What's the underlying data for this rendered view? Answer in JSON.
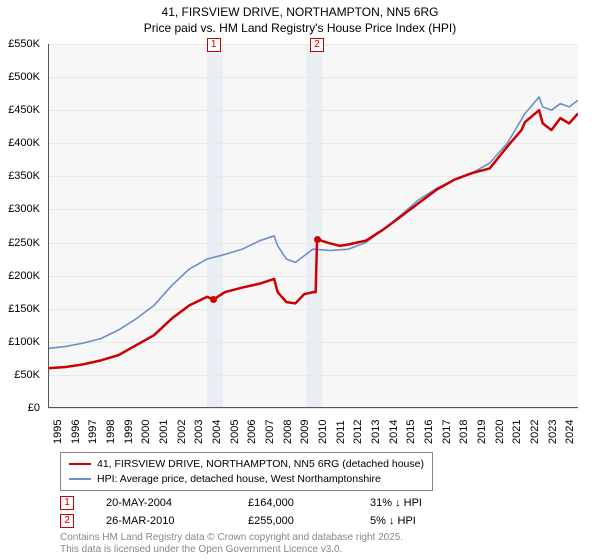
{
  "title": {
    "line1": "41, FIRSVIEW DRIVE, NORTHAMPTON, NN5 6RG",
    "line2": "Price paid vs. HM Land Registry's House Price Index (HPI)"
  },
  "chart": {
    "type": "line",
    "background_color": "#f7f7f7",
    "grid_color": "#e8e8e8",
    "axis_color": "#555555",
    "y": {
      "min": 0,
      "max": 550,
      "ticks": [
        0,
        50,
        100,
        150,
        200,
        250,
        300,
        350,
        400,
        450,
        500,
        550
      ],
      "tick_labels": [
        "£0",
        "£50K",
        "£100K",
        "£150K",
        "£200K",
        "£250K",
        "£300K",
        "£350K",
        "£400K",
        "£450K",
        "£500K",
        "£550K"
      ]
    },
    "x": {
      "min": 1995,
      "max": 2025,
      "ticks": [
        1995,
        1996,
        1997,
        1998,
        1999,
        2000,
        2001,
        2002,
        2003,
        2004,
        2005,
        2006,
        2007,
        2008,
        2009,
        2010,
        2011,
        2012,
        2013,
        2014,
        2015,
        2016,
        2017,
        2018,
        2019,
        2020,
        2021,
        2022,
        2023,
        2024
      ],
      "tick_labels": [
        "1995",
        "1996",
        "1997",
        "1998",
        "1999",
        "2000",
        "2001",
        "2002",
        "2003",
        "2004",
        "2005",
        "2006",
        "2007",
        "2008",
        "2009",
        "2010",
        "2011",
        "2012",
        "2013",
        "2014",
        "2015",
        "2016",
        "2017",
        "2018",
        "2019",
        "2020",
        "2021",
        "2022",
        "2023",
        "2024"
      ]
    },
    "bands": [
      {
        "x_start": 2004.0,
        "x_end": 2004.9,
        "color": "#e9edf4"
      },
      {
        "x_start": 2009.6,
        "x_end": 2010.5,
        "color": "#e9edf4"
      }
    ],
    "markers": [
      {
        "label": "1",
        "x": 2004.38,
        "color": "#cc0000"
      },
      {
        "label": "2",
        "x": 2010.23,
        "color": "#cc0000"
      }
    ],
    "series": [
      {
        "name": "41, FIRSVIEW DRIVE, NORTHAMPTON, NN5 6RG (detached house)",
        "color": "#cc0000",
        "line_width": 2.5,
        "data": [
          [
            1995.0,
            60
          ],
          [
            1996.0,
            62
          ],
          [
            1997.0,
            66
          ],
          [
            1998.0,
            72
          ],
          [
            1999.0,
            80
          ],
          [
            2000.0,
            95
          ],
          [
            2001.0,
            110
          ],
          [
            2002.0,
            135
          ],
          [
            2003.0,
            155
          ],
          [
            2004.0,
            168
          ],
          [
            2004.38,
            164
          ],
          [
            2005.0,
            175
          ],
          [
            2006.0,
            182
          ],
          [
            2007.0,
            188
          ],
          [
            2007.8,
            195
          ],
          [
            2008.0,
            175
          ],
          [
            2008.5,
            160
          ],
          [
            2009.0,
            158
          ],
          [
            2009.5,
            172
          ],
          [
            2010.0,
            175
          ],
          [
            2010.15,
            175
          ],
          [
            2010.23,
            255
          ],
          [
            2010.8,
            250
          ],
          [
            2011.5,
            245
          ],
          [
            2012.0,
            247
          ],
          [
            2013.0,
            253
          ],
          [
            2014.0,
            270
          ],
          [
            2015.0,
            290
          ],
          [
            2016.0,
            310
          ],
          [
            2017.0,
            330
          ],
          [
            2018.0,
            345
          ],
          [
            2019.0,
            355
          ],
          [
            2020.0,
            362
          ],
          [
            2021.0,
            395
          ],
          [
            2021.8,
            420
          ],
          [
            2022.0,
            432
          ],
          [
            2022.8,
            450
          ],
          [
            2023.0,
            430
          ],
          [
            2023.5,
            420
          ],
          [
            2024.0,
            438
          ],
          [
            2024.5,
            430
          ],
          [
            2025.0,
            445
          ]
        ]
      },
      {
        "name": "HPI: Average price, detached house, West Northamptonshire",
        "color": "#6a8fc9",
        "line_width": 1.6,
        "data": [
          [
            1995.0,
            90
          ],
          [
            1996.0,
            93
          ],
          [
            1997.0,
            98
          ],
          [
            1998.0,
            105
          ],
          [
            1999.0,
            118
          ],
          [
            2000.0,
            135
          ],
          [
            2001.0,
            155
          ],
          [
            2002.0,
            185
          ],
          [
            2003.0,
            210
          ],
          [
            2004.0,
            225
          ],
          [
            2005.0,
            232
          ],
          [
            2006.0,
            240
          ],
          [
            2007.0,
            253
          ],
          [
            2007.8,
            260
          ],
          [
            2008.0,
            245
          ],
          [
            2008.5,
            225
          ],
          [
            2009.0,
            220
          ],
          [
            2009.5,
            230
          ],
          [
            2010.0,
            240
          ],
          [
            2011.0,
            238
          ],
          [
            2012.0,
            240
          ],
          [
            2013.0,
            250
          ],
          [
            2014.0,
            270
          ],
          [
            2015.0,
            292
          ],
          [
            2016.0,
            315
          ],
          [
            2017.0,
            332
          ],
          [
            2018.0,
            345
          ],
          [
            2019.0,
            355
          ],
          [
            2020.0,
            370
          ],
          [
            2021.0,
            400
          ],
          [
            2022.0,
            445
          ],
          [
            2022.8,
            470
          ],
          [
            2023.0,
            455
          ],
          [
            2023.5,
            450
          ],
          [
            2024.0,
            460
          ],
          [
            2024.5,
            455
          ],
          [
            2025.0,
            465
          ]
        ]
      }
    ],
    "sale_points": [
      {
        "x": 2004.38,
        "y": 164,
        "color": "#cc0000"
      },
      {
        "x": 2010.23,
        "y": 255,
        "color": "#cc0000"
      }
    ]
  },
  "legend": {
    "items": [
      {
        "color": "#cc0000",
        "label": "41, FIRSVIEW DRIVE, NORTHAMPTON, NN5 6RG (detached house)"
      },
      {
        "color": "#6a8fc9",
        "label": "HPI: Average price, detached house, West Northamptonshire"
      }
    ]
  },
  "sales": [
    {
      "marker": "1",
      "marker_color": "#cc0000",
      "date": "20-MAY-2004",
      "price": "£164,000",
      "delta": "31% ↓ HPI"
    },
    {
      "marker": "2",
      "marker_color": "#cc0000",
      "date": "26-MAR-2010",
      "price": "£255,000",
      "delta": "5% ↓ HPI"
    }
  ],
  "footer": {
    "line1": "Contains HM Land Registry data © Crown copyright and database right 2025.",
    "line2": "This data is licensed under the Open Government Licence v3.0."
  }
}
